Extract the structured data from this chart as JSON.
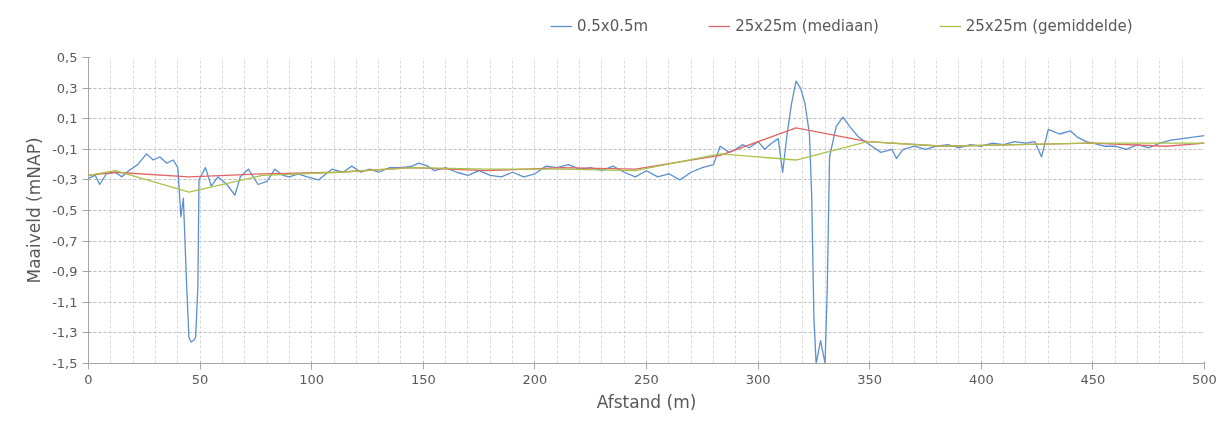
{
  "chart_data": {
    "type": "line",
    "xlabel": "Afstand (m)",
    "ylabel": "Maaiveld (mNAP)",
    "xlim": [
      0,
      500
    ],
    "ylim": [
      -1.5,
      0.5
    ],
    "xticks": [
      0,
      {
        "value": 10,
        "label": null
      },
      {
        "value": 20,
        "label": null
      },
      {
        "value": 30,
        "label": null
      },
      {
        "value": 40,
        "label": null
      },
      50,
      {
        "value": 60,
        "label": null
      },
      {
        "value": 70,
        "label": null
      },
      {
        "value": 80,
        "label": null
      },
      {
        "value": 90,
        "label": null
      },
      100,
      {
        "value": 110,
        "label": null
      },
      {
        "value": 120,
        "label": null
      },
      {
        "value": 130,
        "label": null
      },
      {
        "value": 140,
        "label": null
      },
      150,
      {
        "value": 160,
        "label": null
      },
      {
        "value": 170,
        "label": null
      },
      {
        "value": 180,
        "label": null
      },
      {
        "value": 190,
        "label": null
      },
      200,
      {
        "value": 210,
        "label": null
      },
      {
        "value": 220,
        "label": null
      },
      {
        "value": 230,
        "label": null
      },
      {
        "value": 240,
        "label": null
      },
      250,
      {
        "value": 260,
        "label": null
      },
      {
        "value": 270,
        "label": null
      },
      {
        "value": 280,
        "label": null
      },
      {
        "value": 290,
        "label": null
      },
      300,
      {
        "value": 310,
        "label": null
      },
      {
        "value": 320,
        "label": null
      },
      {
        "value": 330,
        "label": null
      },
      {
        "value": 340,
        "label": null
      },
      350,
      {
        "value": 360,
        "label": null
      },
      {
        "value": 370,
        "label": null
      },
      {
        "value": 380,
        "label": null
      },
      {
        "value": 390,
        "label": null
      },
      400,
      {
        "value": 410,
        "label": null
      },
      {
        "value": 420,
        "label": null
      },
      {
        "value": 430,
        "label": null
      },
      {
        "value": 440,
        "label": null
      },
      450,
      {
        "value": 460,
        "label": null
      },
      {
        "value": 470,
        "label": null
      },
      {
        "value": 480,
        "label": null
      },
      {
        "value": 490,
        "label": null
      },
      500
    ],
    "yticks": [
      {
        "value": -1.5,
        "label": "-1,5"
      },
      {
        "value": -1.3,
        "label": "-1,3"
      },
      {
        "value": -1.1,
        "label": "-1,1"
      },
      {
        "value": -0.9,
        "label": "-0,9"
      },
      {
        "value": -0.7,
        "label": "-0,7"
      },
      {
        "value": -0.5,
        "label": "-0,5"
      },
      {
        "value": -0.3,
        "label": "-0,3"
      },
      {
        "value": -0.1,
        "label": "-0,1"
      },
      {
        "value": 0.1,
        "label": "0,1"
      },
      {
        "value": 0.3,
        "label": "0,3"
      },
      {
        "value": 0.5,
        "label": "0,5"
      }
    ],
    "grid": true,
    "legend": "top",
    "marker": "none",
    "line_style": "solid",
    "series": [
      {
        "name": "0.5x0.5m",
        "color": "#5b8fd0",
        "x": [
          0,
          3,
          5,
          8,
          12,
          15,
          18,
          22,
          26,
          29,
          32,
          35,
          38,
          40,
          41.4,
          42.5,
          44,
          45,
          46,
          47,
          48,
          49,
          49.5,
          52.4,
          55,
          58,
          62,
          65.6,
          68,
          71.6,
          76,
          80,
          83.5,
          87,
          90,
          94,
          98,
          103,
          109,
          114,
          118,
          122,
          126,
          130,
          135,
          140,
          145,
          148,
          152,
          155,
          160,
          165,
          170,
          175,
          180,
          185,
          190,
          195,
          200,
          205,
          210,
          215,
          220,
          225,
          230,
          235,
          240,
          245,
          250,
          255,
          260,
          265,
          270,
          275,
          280,
          283,
          287,
          290,
          293,
          296,
          300,
          303,
          306,
          309,
          311,
          313,
          315,
          317,
          319,
          321,
          323,
          324,
          325,
          326,
          328,
          330,
          331,
          332,
          335,
          338,
          341,
          345,
          350,
          355,
          360,
          362,
          365,
          370,
          375,
          380,
          385,
          390,
          395,
          400,
          405,
          410,
          415,
          420,
          424,
          427,
          430,
          435,
          440,
          443,
          447,
          450,
          455,
          460,
          465,
          470,
          475,
          480,
          485,
          490,
          495,
          500
        ],
        "values": [
          -0.29,
          -0.27,
          -0.33,
          -0.26,
          -0.25,
          -0.28,
          -0.24,
          -0.2,
          -0.13,
          -0.17,
          -0.15,
          -0.19,
          -0.17,
          -0.22,
          -0.54,
          -0.42,
          -1.0,
          -1.33,
          -1.36,
          -1.35,
          -1.33,
          -1.0,
          -0.3,
          -0.22,
          -0.34,
          -0.28,
          -0.33,
          -0.4,
          -0.28,
          -0.23,
          -0.33,
          -0.31,
          -0.23,
          -0.27,
          -0.28,
          -0.26,
          -0.28,
          -0.3,
          -0.23,
          -0.25,
          -0.21,
          -0.25,
          -0.23,
          -0.25,
          -0.22,
          -0.22,
          -0.21,
          -0.19,
          -0.21,
          -0.24,
          -0.22,
          -0.25,
          -0.27,
          -0.24,
          -0.27,
          -0.28,
          -0.25,
          -0.28,
          -0.26,
          -0.21,
          -0.22,
          -0.2,
          -0.23,
          -0.22,
          -0.24,
          -0.21,
          -0.25,
          -0.28,
          -0.24,
          -0.28,
          -0.26,
          -0.3,
          -0.25,
          -0.22,
          -0.2,
          -0.08,
          -0.12,
          -0.1,
          -0.07,
          -0.09,
          -0.05,
          -0.1,
          -0.06,
          -0.03,
          -0.25,
          0.0,
          0.2,
          0.345,
          0.3,
          0.2,
          0.0,
          -0.4,
          -1.2,
          -1.5,
          -1.35,
          -1.5,
          -1.0,
          -0.15,
          0.05,
          0.11,
          0.05,
          -0.02,
          -0.07,
          -0.12,
          -0.1,
          -0.16,
          -0.1,
          -0.08,
          -0.1,
          -0.08,
          -0.07,
          -0.09,
          -0.07,
          -0.08,
          -0.06,
          -0.07,
          -0.05,
          -0.06,
          -0.05,
          -0.15,
          0.03,
          0.0,
          0.02,
          -0.02,
          -0.05,
          -0.06,
          -0.08,
          -0.08,
          -0.1,
          -0.07,
          -0.09,
          -0.06,
          -0.04,
          -0.03,
          -0.02,
          -0.01
        ]
      },
      {
        "name": "25x25m (mediaan)",
        "color": "#e06666",
        "x": [
          0,
          12,
          45,
          78,
          112,
          145,
          178,
          212,
          245,
          283,
          317,
          349,
          383,
          416,
          449,
          483,
          500
        ],
        "values": [
          -0.27,
          -0.25,
          -0.28,
          -0.26,
          -0.25,
          -0.22,
          -0.24,
          -0.22,
          -0.23,
          -0.14,
          0.04,
          -0.05,
          -0.08,
          -0.07,
          -0.06,
          -0.08,
          -0.06
        ]
      },
      {
        "name": "25x25m (gemiddelde)",
        "color": "#a9c24a",
        "x": [
          0,
          12,
          45,
          78,
          112,
          145,
          178,
          212,
          245,
          283,
          317,
          349,
          383,
          416,
          449,
          483,
          500
        ],
        "values": [
          -0.27,
          -0.24,
          -0.38,
          -0.27,
          -0.25,
          -0.22,
          -0.23,
          -0.23,
          -0.24,
          -0.13,
          -0.17,
          -0.05,
          -0.08,
          -0.07,
          -0.06,
          -0.06,
          -0.06
        ]
      }
    ]
  }
}
